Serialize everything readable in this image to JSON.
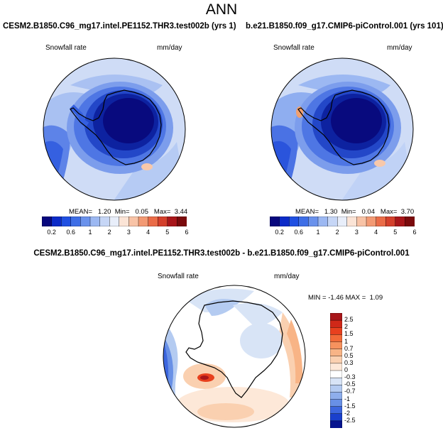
{
  "figure_title": "ANN",
  "panels": [
    {
      "case": "CESM2.B1850.C96_mg17.intel.PE1152.THR3.test002b (yrs 1)",
      "variable": "Snowfall rate",
      "units": "mm/day",
      "stats": {
        "mean": "1.20",
        "min": "0.05",
        "max": "3.44"
      }
    },
    {
      "case": "b.e21.B1850.f09_g17.CMIP6-piControl.001 (yrs 101)",
      "variable": "Snowfall rate",
      "units": "mm/day",
      "stats": {
        "mean": "1.30",
        "min": "0.04",
        "max": "3.70"
      }
    }
  ],
  "labels": {
    "mean": "MEAN=",
    "min": "Min=",
    "max": "Max="
  },
  "abs_colorbar": {
    "ticks": [
      "0.2",
      "0.6",
      "1",
      "2",
      "3",
      "4",
      "5",
      "6"
    ],
    "colors": [
      "#08087e",
      "#0c2bc8",
      "#2050e2",
      "#3e6ee6",
      "#6a92ec",
      "#9cb8f2",
      "#c6d6f6",
      "#e8eefa",
      "#fbe4d6",
      "#f8c3a6",
      "#f39a74",
      "#ea6c48",
      "#d4402c",
      "#a8161a",
      "#7a0a0c"
    ]
  },
  "difference": {
    "title": "CESM2.B1850.C96_mg17.intel.PE1152.THR3.test002b - b.e21.B1850.f09_g17.CMIP6-piControl.001",
    "variable": "Snowfall rate",
    "units": "mm/day",
    "min_label": "MIN =",
    "min": "-1.46",
    "max_label": "MAX =",
    "max": "1.09"
  },
  "diff_colorbar": {
    "ticks": [
      "2.5",
      "2",
      "1.5",
      "1",
      "0.7",
      "0.5",
      "0.3",
      "0",
      "-0.3",
      "-0.5",
      "-0.7",
      "-1",
      "-1.5",
      "-2",
      "-2.5"
    ],
    "colors": [
      "#a8161a",
      "#d02818",
      "#e8401e",
      "#f26a38",
      "#f6925e",
      "#f8b486",
      "#fad0b0",
      "#fde8d8",
      "#ffffff",
      "#d8e4f6",
      "#b4cbf1",
      "#8eaeec",
      "#6890e6",
      "#3c66de",
      "#1a40cc",
      "#06148e"
    ]
  }
}
